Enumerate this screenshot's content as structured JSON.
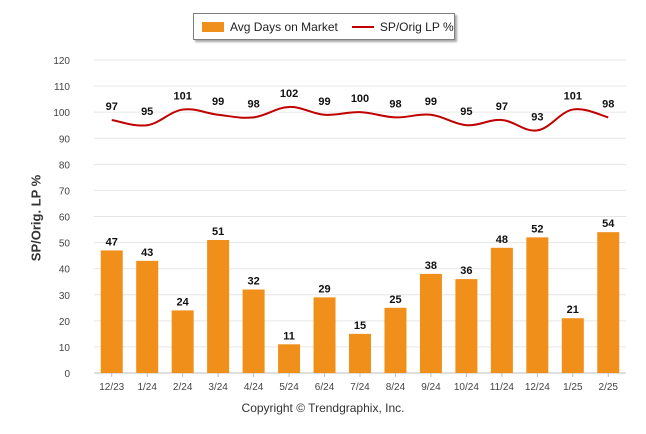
{
  "chart_data": {
    "type": "bar",
    "categories": [
      "12/23",
      "1/24",
      "2/24",
      "3/24",
      "4/24",
      "5/24",
      "6/24",
      "7/24",
      "8/24",
      "9/24",
      "10/24",
      "11/24",
      "12/24",
      "1/25",
      "2/25"
    ],
    "series": [
      {
        "name": "Avg Days on Market",
        "type": "bar",
        "color": "#f0901a",
        "values": [
          47,
          43,
          24,
          51,
          32,
          11,
          29,
          15,
          25,
          38,
          36,
          48,
          52,
          21,
          54
        ]
      },
      {
        "name": "SP/Orig LP %",
        "type": "line",
        "color": "#c00000",
        "values": [
          97,
          95,
          101,
          99,
          98,
          102,
          99,
          100,
          98,
          99,
          95,
          97,
          93,
          101,
          98
        ]
      }
    ],
    "ylabel": "SP/Orig. LP %",
    "xlabel": "",
    "ylim": [
      0,
      120
    ],
    "yticks": [
      0,
      10,
      20,
      30,
      40,
      50,
      60,
      70,
      80,
      90,
      100,
      110,
      120
    ],
    "grid": true,
    "legend_position": "top-center"
  },
  "footer": "Copyright © Trendgraphix, Inc.",
  "colors": {
    "bar": "#f0901a",
    "line": "#c00000",
    "grid": "#e6e6e6"
  }
}
